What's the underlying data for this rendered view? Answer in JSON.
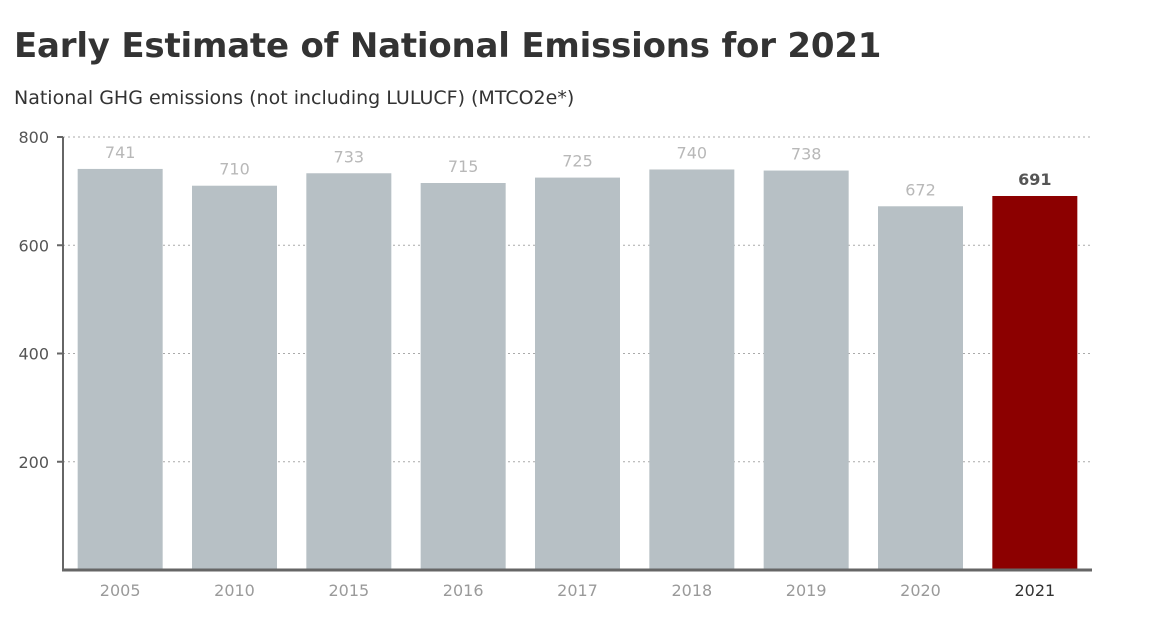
{
  "chart_data": {
    "type": "bar",
    "title": "Early Estimate of National Emissions for 2021",
    "subtitle": "National GHG emissions (not including LULUCF) (MTCO2e*)",
    "categories": [
      "2005",
      "2010",
      "2015",
      "2016",
      "2017",
      "2018",
      "2019",
      "2020",
      "2021"
    ],
    "values": [
      741,
      710,
      733,
      715,
      725,
      740,
      738,
      672,
      691
    ],
    "data_labels": [
      "741",
      "710",
      "733",
      "715",
      "725",
      "740",
      "738",
      "672",
      "691"
    ],
    "highlight_index": 8,
    "ylim": [
      0,
      800
    ],
    "yticks": [
      200,
      400,
      600,
      800
    ],
    "ytick_labels": [
      "200",
      "400",
      "600",
      "800"
    ],
    "grid": "horizontal dotted",
    "legend": "none",
    "colors": {
      "bar": "#b7c0c5",
      "highlight": "#8c0000",
      "label": "#b8b8b8",
      "highlight_label": "#555555",
      "grid": "#aaaaaa",
      "axis": "#666666",
      "tick_label": "#555555",
      "category_label": "#9a9a9a",
      "highlight_category_label": "#333333"
    }
  }
}
